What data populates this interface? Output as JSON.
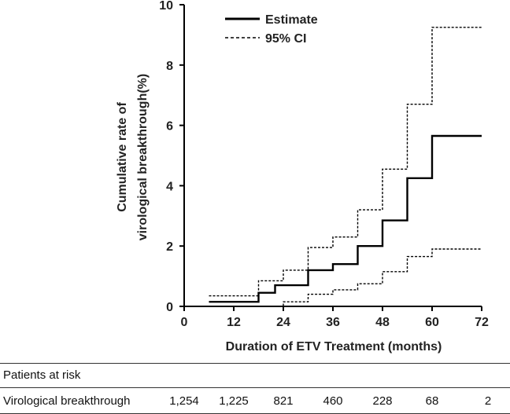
{
  "chart_data": {
    "type": "line",
    "title": "",
    "xlabel": "Duration of ETV Treatment (months)",
    "ylabel_lines": [
      "Cumulative rate of",
      "virological breakthrough(%)"
    ],
    "xlim": [
      0,
      72
    ],
    "ylim": [
      0,
      10
    ],
    "xticks": [
      0,
      12,
      24,
      36,
      48,
      60,
      72
    ],
    "yticks": [
      0,
      2,
      4,
      6,
      8,
      10
    ],
    "grid": false,
    "legend_position": "top-left",
    "series": [
      {
        "name": "Estimate",
        "style": "solid",
        "color": "#000000",
        "points": [
          [
            6,
            0.15
          ],
          [
            18,
            0.15
          ],
          [
            18,
            0.45
          ],
          [
            22,
            0.45
          ],
          [
            22,
            0.7
          ],
          [
            30,
            0.7
          ],
          [
            30,
            1.2
          ],
          [
            36,
            1.2
          ],
          [
            36,
            1.4
          ],
          [
            42,
            1.4
          ],
          [
            42,
            2.0
          ],
          [
            48,
            2.0
          ],
          [
            48,
            2.85
          ],
          [
            54,
            2.85
          ],
          [
            54,
            4.25
          ],
          [
            60,
            4.25
          ],
          [
            60,
            5.65
          ],
          [
            72,
            5.65
          ]
        ]
      },
      {
        "name": "95% CI",
        "style": "dashed",
        "color": "#000000",
        "points": [
          [
            6,
            0.35
          ],
          [
            18,
            0.35
          ],
          [
            18,
            0.85
          ],
          [
            24,
            0.85
          ],
          [
            24,
            1.2
          ],
          [
            30,
            1.2
          ],
          [
            30,
            1.95
          ],
          [
            36,
            1.95
          ],
          [
            36,
            2.3
          ],
          [
            42,
            2.3
          ],
          [
            42,
            3.2
          ],
          [
            48,
            3.2
          ],
          [
            48,
            4.55
          ],
          [
            54,
            4.55
          ],
          [
            54,
            6.7
          ],
          [
            60,
            6.7
          ],
          [
            60,
            9.25
          ],
          [
            72,
            9.25
          ]
        ]
      },
      {
        "name": "95% CI lower",
        "style": "dashed",
        "color": "#000000",
        "points": [
          [
            6,
            0.0
          ],
          [
            24,
            0.0
          ],
          [
            24,
            0.15
          ],
          [
            30,
            0.15
          ],
          [
            30,
            0.4
          ],
          [
            36,
            0.4
          ],
          [
            36,
            0.55
          ],
          [
            42,
            0.55
          ],
          [
            42,
            0.75
          ],
          [
            48,
            0.75
          ],
          [
            48,
            1.15
          ],
          [
            54,
            1.15
          ],
          [
            54,
            1.65
          ],
          [
            60,
            1.65
          ],
          [
            60,
            1.9
          ],
          [
            72,
            1.9
          ]
        ]
      }
    ],
    "risk_table": {
      "header": "Patients at risk",
      "row_label": "Virological breakthrough",
      "times": [
        0,
        12,
        24,
        36,
        48,
        60,
        72
      ],
      "values": [
        "1,254",
        "1,225",
        "821",
        "460",
        "228",
        "68",
        "2"
      ]
    }
  }
}
